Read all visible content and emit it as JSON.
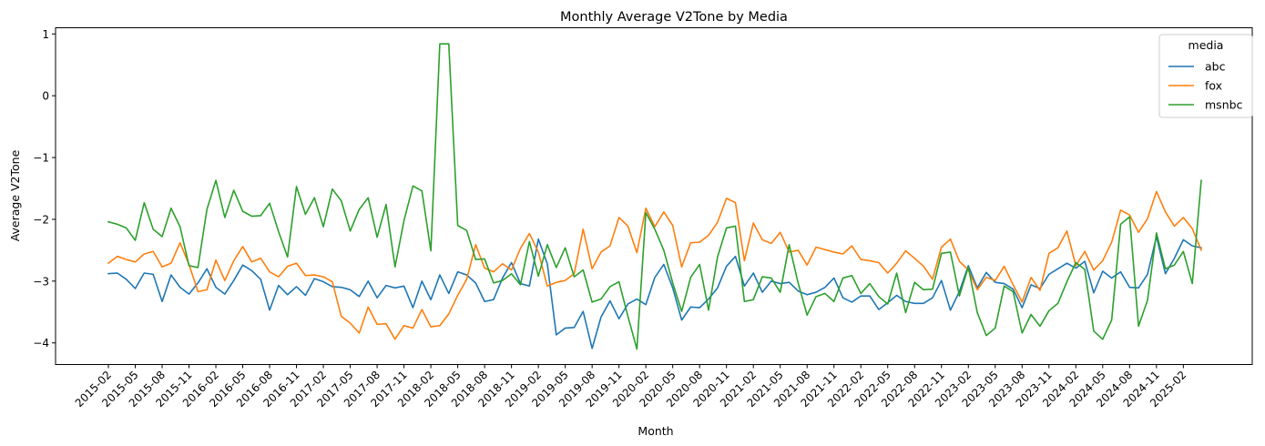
{
  "chart_data": {
    "type": "line",
    "title": "Monthly Average V2Tone by Media",
    "xlabel": "Month",
    "ylabel": "Average V2Tone",
    "ylim": [
      -4.35,
      1.1
    ],
    "yticks": [
      1,
      0,
      -1,
      -2,
      -3,
      -4
    ],
    "ytick_labels": [
      "1",
      "0",
      "−1",
      "−2",
      "−3",
      "−4"
    ],
    "grid": false,
    "legend": {
      "title": "media",
      "position": "top-right"
    },
    "x": [
      "2015-02",
      "2015-03",
      "2015-04",
      "2015-05",
      "2015-06",
      "2015-07",
      "2015-08",
      "2015-09",
      "2015-10",
      "2015-11",
      "2015-12",
      "2016-01",
      "2016-02",
      "2016-03",
      "2016-04",
      "2016-05",
      "2016-06",
      "2016-07",
      "2016-08",
      "2016-09",
      "2016-10",
      "2016-11",
      "2016-12",
      "2017-01",
      "2017-02",
      "2017-03",
      "2017-04",
      "2017-05",
      "2017-06",
      "2017-07",
      "2017-08",
      "2017-09",
      "2017-10",
      "2017-11",
      "2017-12",
      "2018-01",
      "2018-02",
      "2018-03",
      "2018-04",
      "2018-05",
      "2018-06",
      "2018-07",
      "2018-08",
      "2018-09",
      "2018-10",
      "2018-11",
      "2018-12",
      "2019-01",
      "2019-02",
      "2019-03",
      "2019-04",
      "2019-05",
      "2019-06",
      "2019-07",
      "2019-08",
      "2019-09",
      "2019-10",
      "2019-11",
      "2019-12",
      "2020-01",
      "2020-02",
      "2020-03",
      "2020-04",
      "2020-05",
      "2020-06",
      "2020-07",
      "2020-08",
      "2020-09",
      "2020-10",
      "2020-11",
      "2020-12",
      "2021-01",
      "2021-02",
      "2021-03",
      "2021-04",
      "2021-05",
      "2021-06",
      "2021-07",
      "2021-08",
      "2021-09",
      "2021-10",
      "2021-11",
      "2021-12",
      "2022-01",
      "2022-02",
      "2022-03",
      "2022-04",
      "2022-05",
      "2022-06",
      "2022-07",
      "2022-08",
      "2022-09",
      "2022-10",
      "2022-11",
      "2022-12",
      "2023-01",
      "2023-02",
      "2023-03",
      "2023-04",
      "2023-05",
      "2023-06",
      "2023-07",
      "2023-08",
      "2023-09",
      "2023-10",
      "2023-11",
      "2023-12",
      "2024-01",
      "2024-02",
      "2024-03",
      "2024-04",
      "2024-05",
      "2024-06",
      "2024-07",
      "2024-08",
      "2024-09",
      "2024-10",
      "2024-11",
      "2024-12",
      "2025-01",
      "2025-02",
      "2025-03",
      "2025-04"
    ],
    "xticks": [
      "2015-02",
      "2015-05",
      "2015-08",
      "2015-11",
      "2016-02",
      "2016-05",
      "2016-08",
      "2016-11",
      "2017-02",
      "2017-05",
      "2017-08",
      "2017-11",
      "2018-02",
      "2018-05",
      "2018-08",
      "2018-11",
      "2019-02",
      "2019-05",
      "2019-08",
      "2019-11",
      "2020-02",
      "2020-05",
      "2020-08",
      "2020-11",
      "2021-02",
      "2021-05",
      "2021-08",
      "2021-11",
      "2022-02",
      "2022-05",
      "2022-08",
      "2022-11",
      "2023-02",
      "2023-05",
      "2023-08",
      "2023-11",
      "2024-02",
      "2024-05",
      "2024-08",
      "2024-11",
      "2025-02"
    ],
    "series": [
      {
        "name": "abc",
        "color": "#1f77b4",
        "values": [
          -2.88,
          -2.87,
          -2.97,
          -3.12,
          -2.87,
          -2.89,
          -3.33,
          -2.9,
          -3.1,
          -3.21,
          -3.03,
          -2.8,
          -3.1,
          -3.21,
          -2.99,
          -2.74,
          -2.83,
          -2.97,
          -3.47,
          -3.07,
          -3.22,
          -3.09,
          -3.23,
          -2.96,
          -3.01,
          -3.09,
          -3.1,
          -3.14,
          -3.25,
          -3.0,
          -3.27,
          -3.07,
          -3.11,
          -3.08,
          -3.43,
          -3.0,
          -3.3,
          -2.9,
          -3.2,
          -2.85,
          -2.9,
          -3.03,
          -3.33,
          -3.3,
          -2.95,
          -2.7,
          -3.04,
          -3.08,
          -2.32,
          -2.72,
          -3.87,
          -3.76,
          -3.75,
          -3.49,
          -4.09,
          -3.58,
          -3.32,
          -3.61,
          -3.37,
          -3.29,
          -3.38,
          -2.94,
          -2.73,
          -3.11,
          -3.63,
          -3.42,
          -3.43,
          -3.29,
          -3.11,
          -2.76,
          -2.6,
          -3.08,
          -2.87,
          -3.18,
          -3.0,
          -3.04,
          -3.02,
          -3.16,
          -3.22,
          -3.18,
          -3.1,
          -2.95,
          -3.27,
          -3.34,
          -3.24,
          -3.24,
          -3.46,
          -3.35,
          -3.23,
          -3.33,
          -3.36,
          -3.36,
          -3.27,
          -2.99,
          -3.47,
          -3.17,
          -2.75,
          -3.11,
          -2.86,
          -3.02,
          -3.04,
          -3.13,
          -3.43,
          -3.06,
          -3.12,
          -2.89,
          -2.8,
          -2.71,
          -2.79,
          -2.68,
          -3.19,
          -2.84,
          -2.95,
          -2.85,
          -3.1,
          -3.11,
          -2.89,
          -2.28,
          -2.88,
          -2.63,
          -2.33,
          -2.43,
          -2.46
        ]
      },
      {
        "name": "fox",
        "color": "#ff7f0e",
        "values": [
          -2.71,
          -2.6,
          -2.65,
          -2.69,
          -2.56,
          -2.52,
          -2.77,
          -2.71,
          -2.38,
          -2.73,
          -3.17,
          -3.14,
          -2.66,
          -2.99,
          -2.67,
          -2.44,
          -2.69,
          -2.63,
          -2.85,
          -2.93,
          -2.76,
          -2.71,
          -2.91,
          -2.9,
          -2.93,
          -3.01,
          -3.57,
          -3.68,
          -3.84,
          -3.42,
          -3.7,
          -3.69,
          -3.94,
          -3.72,
          -3.76,
          -3.46,
          -3.74,
          -3.72,
          -3.53,
          -3.23,
          -2.97,
          -2.41,
          -2.79,
          -2.85,
          -2.72,
          -2.82,
          -2.47,
          -2.23,
          -2.53,
          -3.08,
          -3.02,
          -2.99,
          -2.88,
          -2.16,
          -2.8,
          -2.53,
          -2.43,
          -1.97,
          -2.11,
          -2.54,
          -1.82,
          -2.12,
          -1.88,
          -2.1,
          -2.77,
          -2.38,
          -2.37,
          -2.26,
          -2.05,
          -1.66,
          -1.73,
          -2.67,
          -2.06,
          -2.33,
          -2.39,
          -2.21,
          -2.53,
          -2.5,
          -2.74,
          -2.45,
          -2.49,
          -2.53,
          -2.56,
          -2.43,
          -2.65,
          -2.67,
          -2.7,
          -2.87,
          -2.71,
          -2.51,
          -2.63,
          -2.76,
          -2.97,
          -2.45,
          -2.32,
          -2.68,
          -2.82,
          -3.14,
          -2.94,
          -2.99,
          -2.76,
          -3.06,
          -3.34,
          -2.94,
          -3.15,
          -2.55,
          -2.46,
          -2.19,
          -2.75,
          -2.52,
          -2.82,
          -2.67,
          -2.37,
          -1.85,
          -1.93,
          -2.21,
          -1.99,
          -1.55,
          -1.88,
          -2.11,
          -1.97,
          -2.15,
          -2.5
        ]
      },
      {
        "name": "msnbc",
        "color": "#2ca02c",
        "values": [
          -2.04,
          -2.08,
          -2.14,
          -2.34,
          -1.73,
          -2.16,
          -2.28,
          -1.82,
          -2.12,
          -2.75,
          -2.78,
          -1.84,
          -1.37,
          -1.97,
          -1.53,
          -1.87,
          -1.95,
          -1.94,
          -1.74,
          -2.2,
          -2.61,
          -1.47,
          -1.92,
          -1.65,
          -2.12,
          -1.51,
          -1.7,
          -2.19,
          -1.84,
          -1.65,
          -2.29,
          -1.76,
          -2.77,
          -2.02,
          -1.46,
          -1.54,
          -2.51,
          0.84,
          0.84,
          -2.1,
          -2.18,
          -2.65,
          -2.64,
          -3.03,
          -2.99,
          -2.88,
          -3.06,
          -2.36,
          -2.92,
          -2.41,
          -2.78,
          -2.46,
          -2.93,
          -2.82,
          -3.34,
          -3.29,
          -3.09,
          -3.01,
          -3.57,
          -4.1,
          -1.89,
          -2.16,
          -2.5,
          -3.03,
          -3.49,
          -2.94,
          -2.73,
          -3.47,
          -2.61,
          -2.14,
          -2.11,
          -3.33,
          -3.3,
          -2.93,
          -2.95,
          -3.18,
          -2.41,
          -3.03,
          -3.55,
          -3.25,
          -3.2,
          -3.33,
          -2.95,
          -2.91,
          -3.2,
          -3.04,
          -3.25,
          -3.37,
          -2.87,
          -3.51,
          -3.02,
          -3.14,
          -3.13,
          -2.55,
          -2.53,
          -3.24,
          -2.77,
          -3.51,
          -3.88,
          -3.76,
          -3.08,
          -3.17,
          -3.84,
          -3.54,
          -3.73,
          -3.48,
          -3.36,
          -3.01,
          -2.7,
          -2.81,
          -3.81,
          -3.94,
          -3.63,
          -2.08,
          -1.96,
          -3.73,
          -3.31,
          -2.22,
          -2.8,
          -2.74,
          -2.52,
          -3.04,
          -1.37
        ]
      }
    ]
  }
}
